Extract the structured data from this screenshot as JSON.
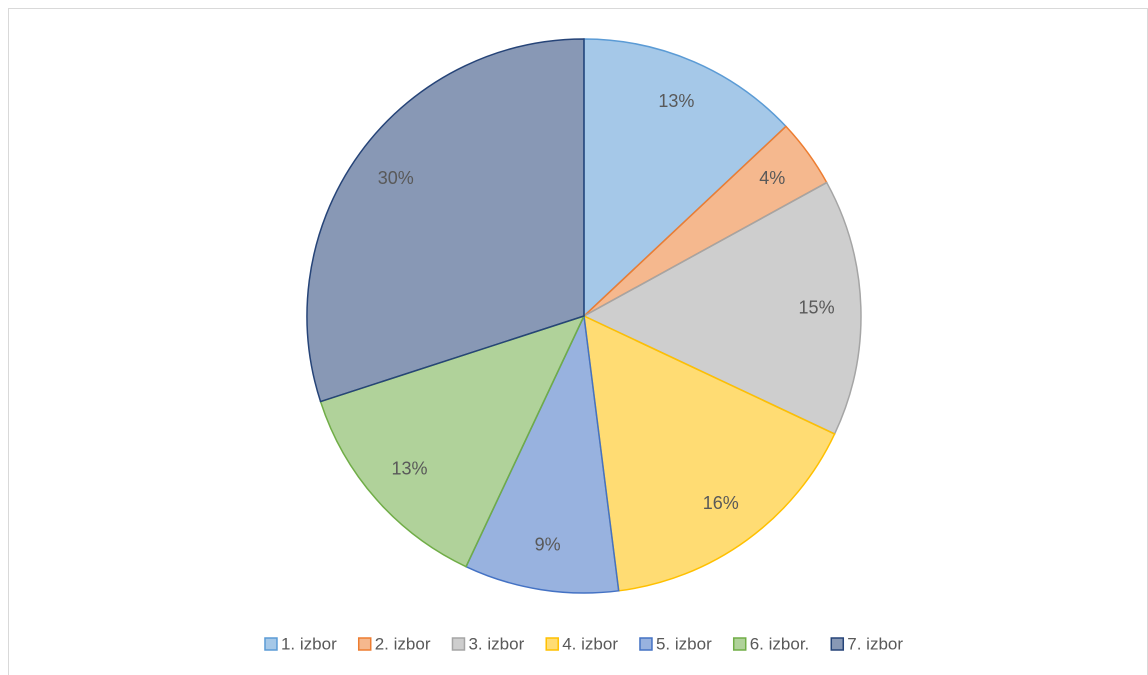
{
  "chart_data": {
    "type": "pie",
    "categories": [
      "1. izbor",
      "2. izbor",
      "3. izbor",
      "4. izbor",
      "5. izbor",
      "6. izbor.",
      "7. izbor"
    ],
    "values": [
      13,
      4,
      15,
      16,
      9,
      13,
      30
    ],
    "value_labels": [
      "13%",
      "4%",
      "15%",
      "16%",
      "9%",
      "13%",
      "30%"
    ],
    "colors": [
      "#5b9bd5",
      "#ed7d31",
      "#a5a5a5",
      "#ffc000",
      "#4472c4",
      "#70ad47",
      "#264478"
    ],
    "legend": "bottom"
  }
}
